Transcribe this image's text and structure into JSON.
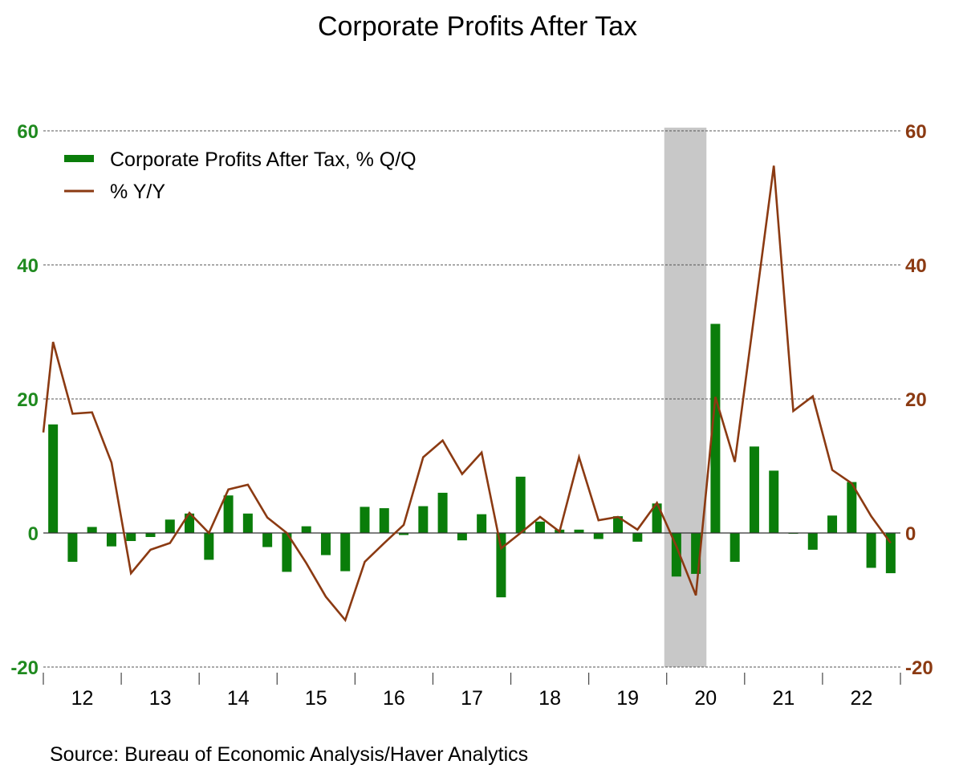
{
  "chart_data": {
    "type": "bar+line",
    "title": "Corporate Profits After Tax",
    "source": "Source:  Bureau of Economic Analysis/Haver Analytics",
    "x_labels": [
      "12",
      "13",
      "14",
      "15",
      "16",
      "17",
      "18",
      "19",
      "20",
      "21",
      "22"
    ],
    "quarters_start": "2012Q1",
    "quarters_end": "2022Q4",
    "ylim_left": [
      -20,
      60
    ],
    "ylim_right": [
      -20,
      60
    ],
    "yticks_left": [
      "60",
      "40",
      "20",
      "0",
      "-20"
    ],
    "yticks_right": [
      "60",
      "40",
      "20",
      "0",
      "-20"
    ],
    "yticks_values": [
      60,
      40,
      20,
      0,
      -20
    ],
    "grid": "horizontal dashed",
    "legend_position": "top-left",
    "recession_shading": {
      "start_quarter_index": 32,
      "end_quarter_index": 33,
      "label": "2020 recession"
    },
    "colors": {
      "bars": "#0a7d0a",
      "line": "#8b3a12",
      "left_axis": "#1f8a1f",
      "right_axis": "#8b3a12",
      "recession": "#c8c8c8"
    },
    "series": [
      {
        "name": "Corporate Profits After Tax, % Q/Q",
        "type": "bar",
        "axis": "left",
        "values": [
          16.2,
          -4.3,
          0.9,
          -2.0,
          -1.2,
          -0.6,
          2.0,
          2.9,
          -4.0,
          5.6,
          2.9,
          -2.1,
          -5.8,
          1.0,
          -3.3,
          -5.7,
          3.9,
          3.7,
          -0.3,
          4.0,
          6.0,
          -1.1,
          2.8,
          -9.6,
          8.4,
          1.7,
          0.5,
          0.5,
          -0.9,
          2.5,
          -1.3,
          4.4,
          -6.5,
          -6.1,
          31.2,
          -4.3,
          12.9,
          9.3,
          -0.1,
          -2.5,
          2.6,
          7.6,
          -5.2,
          -6.0
        ]
      },
      {
        "name": "% Y/Y",
        "type": "line",
        "axis": "right",
        "values": [
          28.5,
          17.8,
          18.0,
          10.5,
          -6.0,
          -2.5,
          -1.5,
          3.0,
          0.0,
          6.5,
          7.2,
          2.3,
          0.0,
          -4.5,
          -9.5,
          -13.0,
          -4.3,
          -1.5,
          1.2,
          11.3,
          13.8,
          8.8,
          12.0,
          -2.3,
          0.0,
          2.4,
          0.2,
          11.3,
          1.9,
          2.4,
          0.5,
          4.5,
          -2.0,
          -9.3,
          20.3,
          10.6,
          32.6,
          54.8,
          18.2,
          20.4,
          9.4,
          7.4,
          2.5,
          -1.5
        ]
      }
    ]
  }
}
